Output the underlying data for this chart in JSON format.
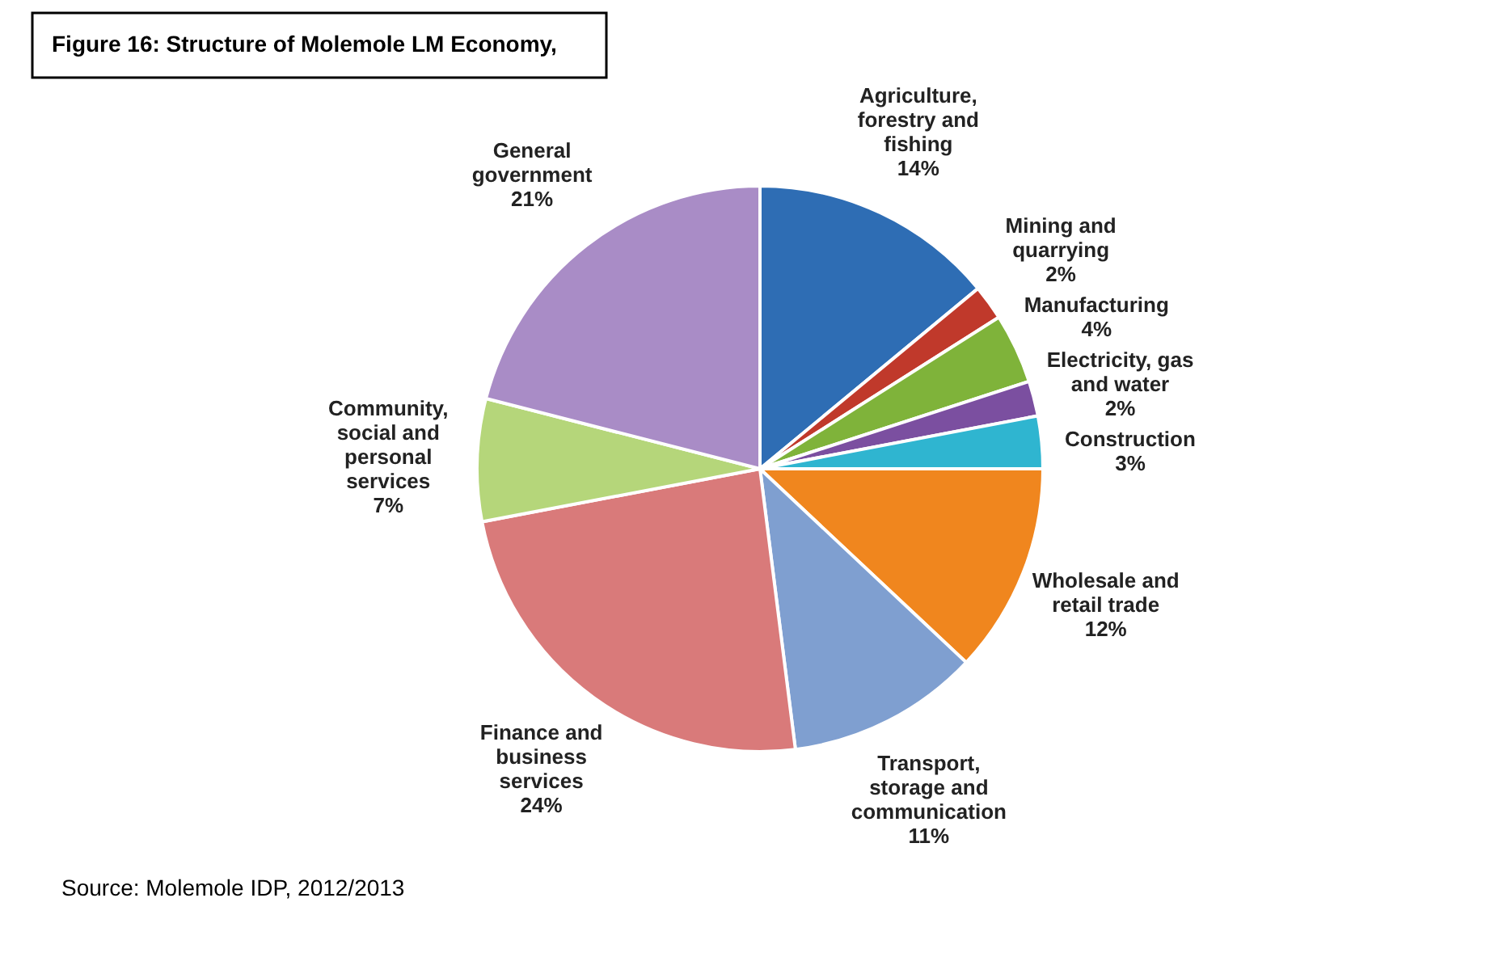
{
  "chart_data": {
    "type": "pie",
    "title": "Figure 16: Structure of Molemole LM Economy,",
    "categories": [
      "Agriculture, forestry and fishing",
      "Mining and quarrying",
      "Manufacturing",
      "Electricity, gas and water",
      "Construction",
      "Wholesale and retail trade",
      "Transport, storage and communication",
      "Finance and business services",
      "Community, social and personal services",
      "General government"
    ],
    "values": [
      14,
      2,
      4,
      2,
      3,
      12,
      11,
      24,
      7,
      21
    ],
    "value_labels": [
      "14%",
      "2%",
      "4%",
      "2%",
      "3%",
      "12%",
      "11%",
      "24%",
      "7%",
      "21%"
    ],
    "colors": [
      "#2e6db4",
      "#c0392b",
      "#7fb33a",
      "#7b4fa0",
      "#2fb5d0",
      "#f0861e",
      "#7f9fd0",
      "#d97a7a",
      "#b5d67a",
      "#a98cc6"
    ],
    "annotations": [
      "Source: Molemole IDP, 2012/2013"
    ]
  }
}
